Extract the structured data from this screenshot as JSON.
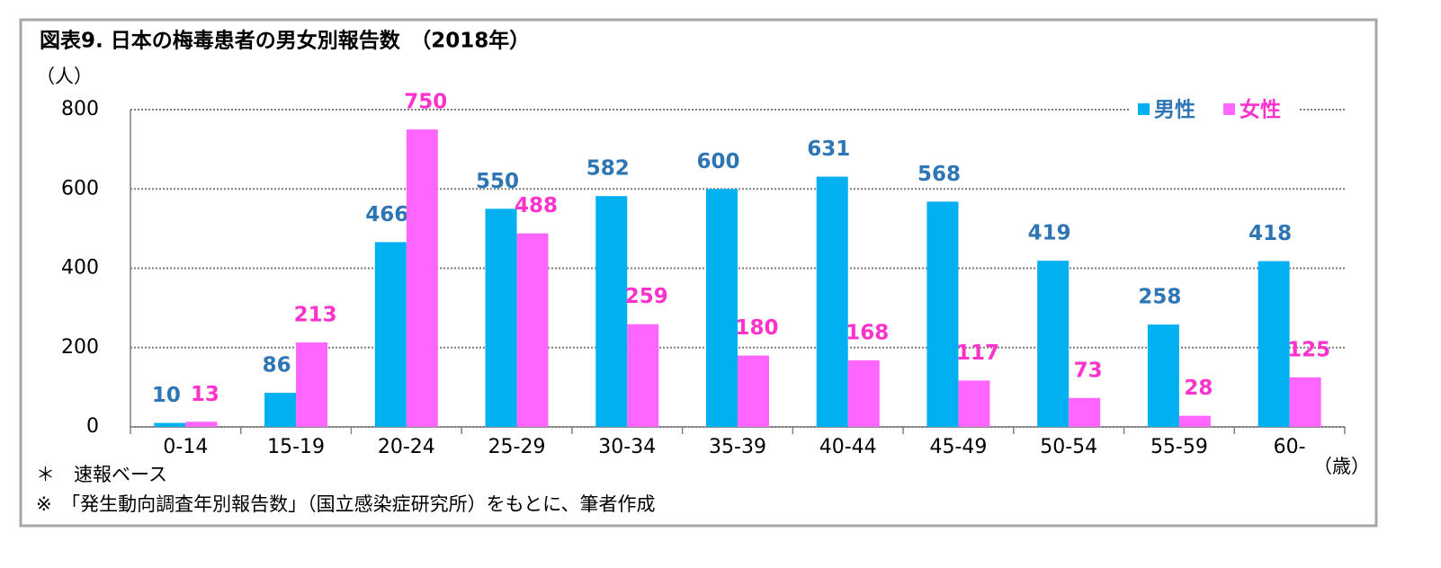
{
  "chart_data": {
    "type": "bar",
    "title": "図表9.  日本の梅毒患者の男女別報告数　（2018年）",
    "y_label": "（人）",
    "x_label": "（歳）",
    "categories": [
      "0-14",
      "15-19",
      "20-24",
      "25-29",
      "30-34",
      "35-39",
      "40-44",
      "45-49",
      "50-54",
      "55-59",
      "60-"
    ],
    "series": [
      {
        "name": "男性",
        "color": "#00b0f0",
        "label_color": "#2e75b6",
        "values": [
          10,
          86,
          466,
          550,
          582,
          600,
          631,
          568,
          419,
          258,
          418
        ]
      },
      {
        "name": "女性",
        "color": "#ff66ff",
        "label_color": "#ff33cc",
        "values": [
          13,
          213,
          750,
          488,
          259,
          180,
          168,
          117,
          73,
          28,
          125
        ]
      }
    ],
    "ylim": [
      0,
      800
    ],
    "yticks": [
      0,
      200,
      400,
      600,
      800
    ],
    "grid": true,
    "legend": "upper right",
    "notes": [
      "＊　速報ベース",
      "※　「発生動向調査年別報告数」（国立感染症研究所）をもとに、筆者作成"
    ]
  }
}
